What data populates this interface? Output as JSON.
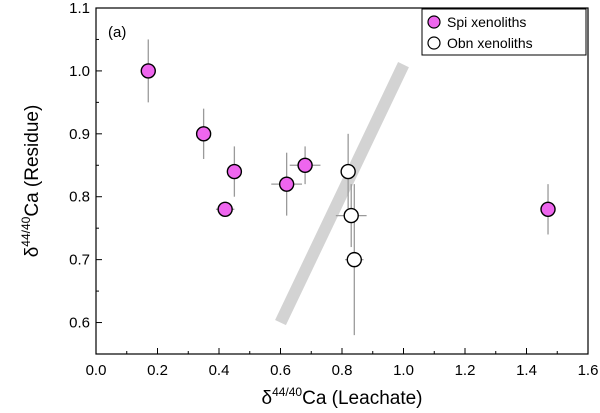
{
  "chart_data": {
    "type": "scatter",
    "panel_label": "(a)",
    "xlabel": {
      "prefix": "δ",
      "sup": "44/40",
      "suffix": "Ca (Leachate)"
    },
    "ylabel": {
      "prefix": "δ",
      "sup": "44/40",
      "suffix": "Ca (Residue)"
    },
    "xlim": [
      0.0,
      1.6
    ],
    "ylim": [
      0.55,
      1.1
    ],
    "xticks": [
      "0.0",
      "0.2",
      "0.4",
      "0.6",
      "0.8",
      "1.0",
      "1.2",
      "1.4",
      "1.6"
    ],
    "yticks": [
      "0.6",
      "0.7",
      "0.8",
      "0.9",
      "1.0",
      "1.1"
    ],
    "grid": false,
    "legend_position": "top-right",
    "trend_band": {
      "from": [
        0.6,
        0.6
      ],
      "to": [
        1.0,
        1.01
      ],
      "color": "#d3d3d3"
    },
    "series": [
      {
        "name": "Spi xenoliths",
        "fill": "#ee66ee",
        "points": [
          {
            "x": 0.17,
            "y": 1.0,
            "xerr": 0.0,
            "yerr": 0.05
          },
          {
            "x": 0.35,
            "y": 0.9,
            "xerr": 0.0,
            "yerr": 0.04
          },
          {
            "x": 0.45,
            "y": 0.84,
            "xerr": 0.0,
            "yerr": 0.04
          },
          {
            "x": 0.42,
            "y": 0.78,
            "xerr": 0.03,
            "yerr": 0.0
          },
          {
            "x": 0.62,
            "y": 0.82,
            "xerr": 0.05,
            "yerr": 0.05
          },
          {
            "x": 0.68,
            "y": 0.85,
            "xerr": 0.05,
            "yerr": 0.03
          },
          {
            "x": 1.47,
            "y": 0.78,
            "xerr": 0.0,
            "yerr": 0.04
          }
        ]
      },
      {
        "name": "Obn xenoliths",
        "fill": "#ffffff",
        "points": [
          {
            "x": 0.82,
            "y": 0.84,
            "xerr": 0.0,
            "yerr": 0.06
          },
          {
            "x": 0.83,
            "y": 0.77,
            "xerr": 0.05,
            "yerr": 0.05
          },
          {
            "x": 0.84,
            "y": 0.7,
            "xerr": 0.03,
            "yerr": 0.12
          }
        ]
      }
    ]
  }
}
